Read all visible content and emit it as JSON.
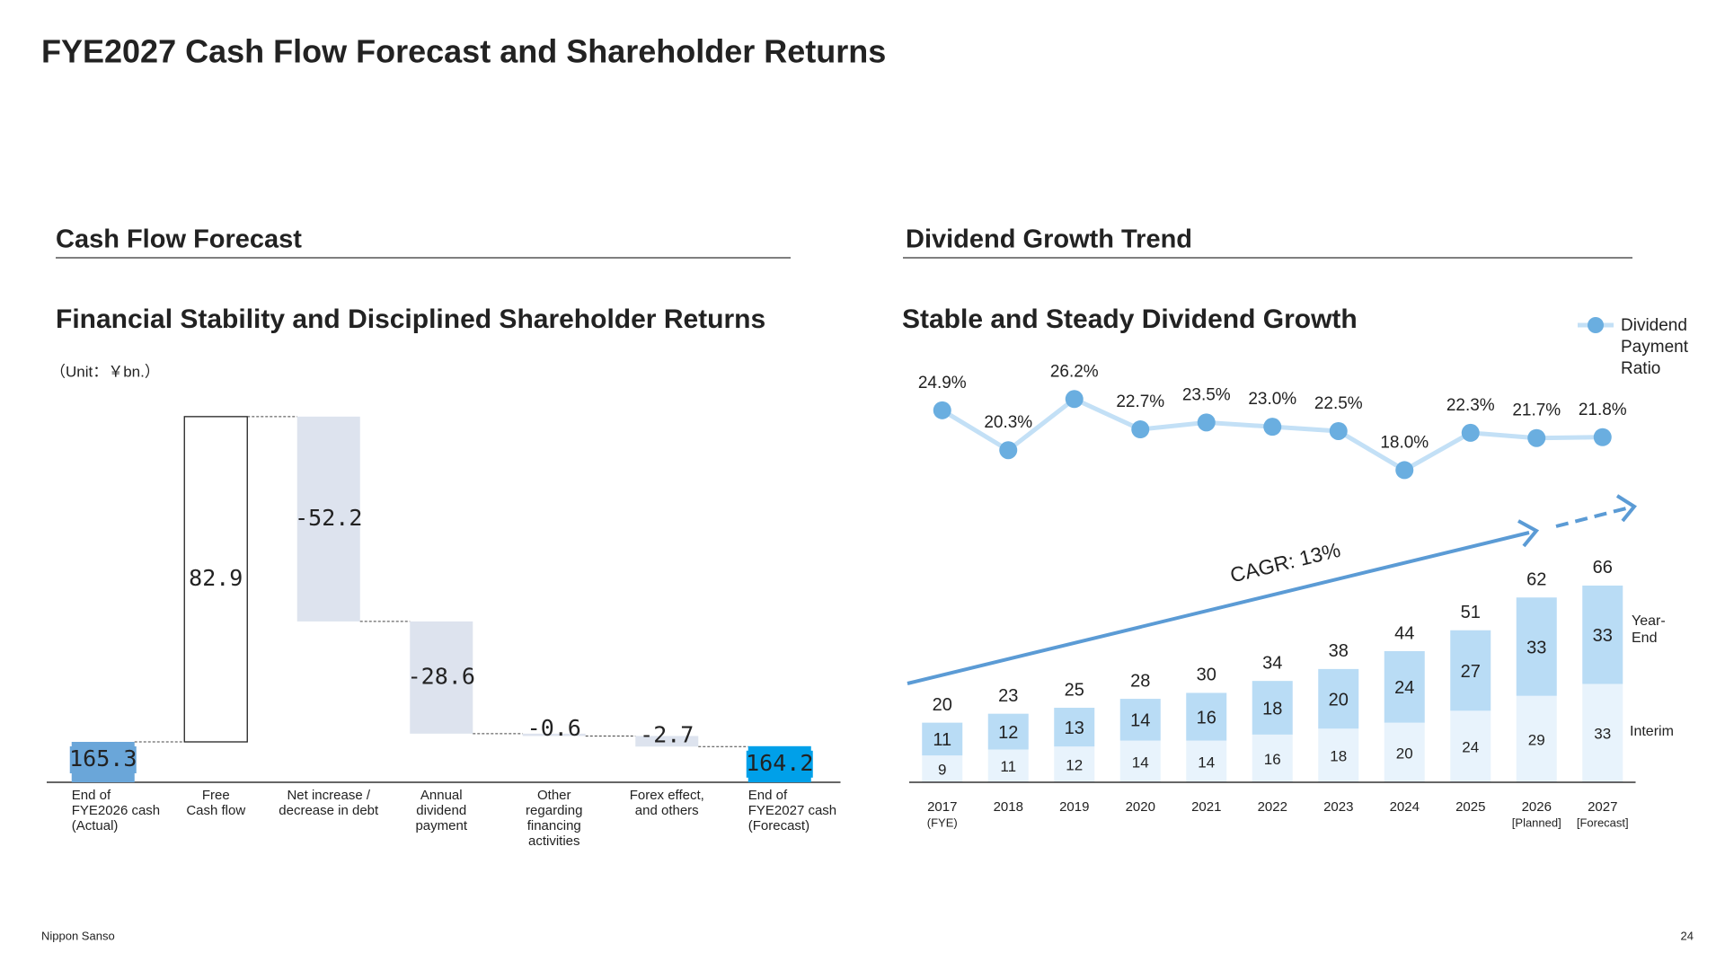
{
  "title": "FYE2027 Cash Flow Forecast and Shareholder Returns",
  "footer": {
    "company": "Nippon Sanso",
    "page": "24"
  },
  "chart_data": [
    {
      "type": "waterfall",
      "heading": "Cash Flow Forecast",
      "title": "Financial Stability and Disciplined Shareholder Returns",
      "subtitle": "（Unit：￥bn.）",
      "categories": [
        [
          "End of",
          "FYE2026 cash",
          "(Actual)"
        ],
        [
          "Free",
          "Cash flow"
        ],
        [
          "Net increase /",
          "decrease in debt"
        ],
        [
          "Annual",
          "dividend",
          "payment"
        ],
        [
          "Other",
          "regarding",
          "financing",
          "activities"
        ],
        [
          "Forex effect,",
          "and others"
        ],
        [
          "End of",
          "FYE2027 cash",
          "(Forecast)"
        ]
      ],
      "values": [
        165.3,
        82.9,
        -52.2,
        -28.6,
        -0.6,
        -2.7,
        164.2
      ],
      "colors": [
        "#6aa6d9",
        "#ffffff",
        "#dde3ee",
        "#dde3ee",
        "#dde3ee",
        "#dde3ee",
        "#00a0e9"
      ],
      "ylim": [
        155,
        250
      ]
    },
    {
      "type": "bar-line",
      "heading": "Dividend Growth Trend",
      "title": "Stable and Steady Dividend Growth",
      "annotation": "CAGR: 13%",
      "categories": [
        [
          "2017",
          "(FYE)"
        ],
        [
          "2018"
        ],
        [
          "2019"
        ],
        [
          "2020"
        ],
        [
          "2021"
        ],
        [
          "2022"
        ],
        [
          "2023"
        ],
        [
          "2024"
        ],
        [
          "2025"
        ],
        [
          "2026",
          "[Planned]"
        ],
        [
          "2027",
          "[Forecast]"
        ]
      ],
      "totals": [
        20,
        23,
        25,
        28,
        30,
        34,
        38,
        44,
        51,
        62,
        66
      ],
      "series": [
        {
          "name": "Interim",
          "color": "#e8f3fc",
          "values": [
            9,
            11,
            12,
            14,
            14,
            16,
            18,
            20,
            24,
            29,
            33
          ]
        },
        {
          "name": "Year-End",
          "color": "#b9dcf5",
          "values": [
            11,
            12,
            13,
            14,
            16,
            18,
            20,
            24,
            27,
            33,
            33
          ]
        },
        {
          "name": "Dividend Payment Ratio",
          "color": "#6aaee0",
          "axis": "y2",
          "values": [
            24.9,
            20.3,
            26.2,
            22.7,
            23.5,
            23.0,
            22.5,
            18.0,
            22.3,
            21.7,
            21.8
          ],
          "value_labels": [
            "24.9%",
            "20.3%",
            "26.2%",
            "22.7%",
            "23.5%",
            "23.0%",
            "22.5%",
            "18.0%",
            "22.3%",
            "21.7%",
            "21.8%"
          ]
        }
      ],
      "ylim": [
        0,
        160
      ],
      "y2lim": [
        -18,
        37
      ]
    }
  ]
}
